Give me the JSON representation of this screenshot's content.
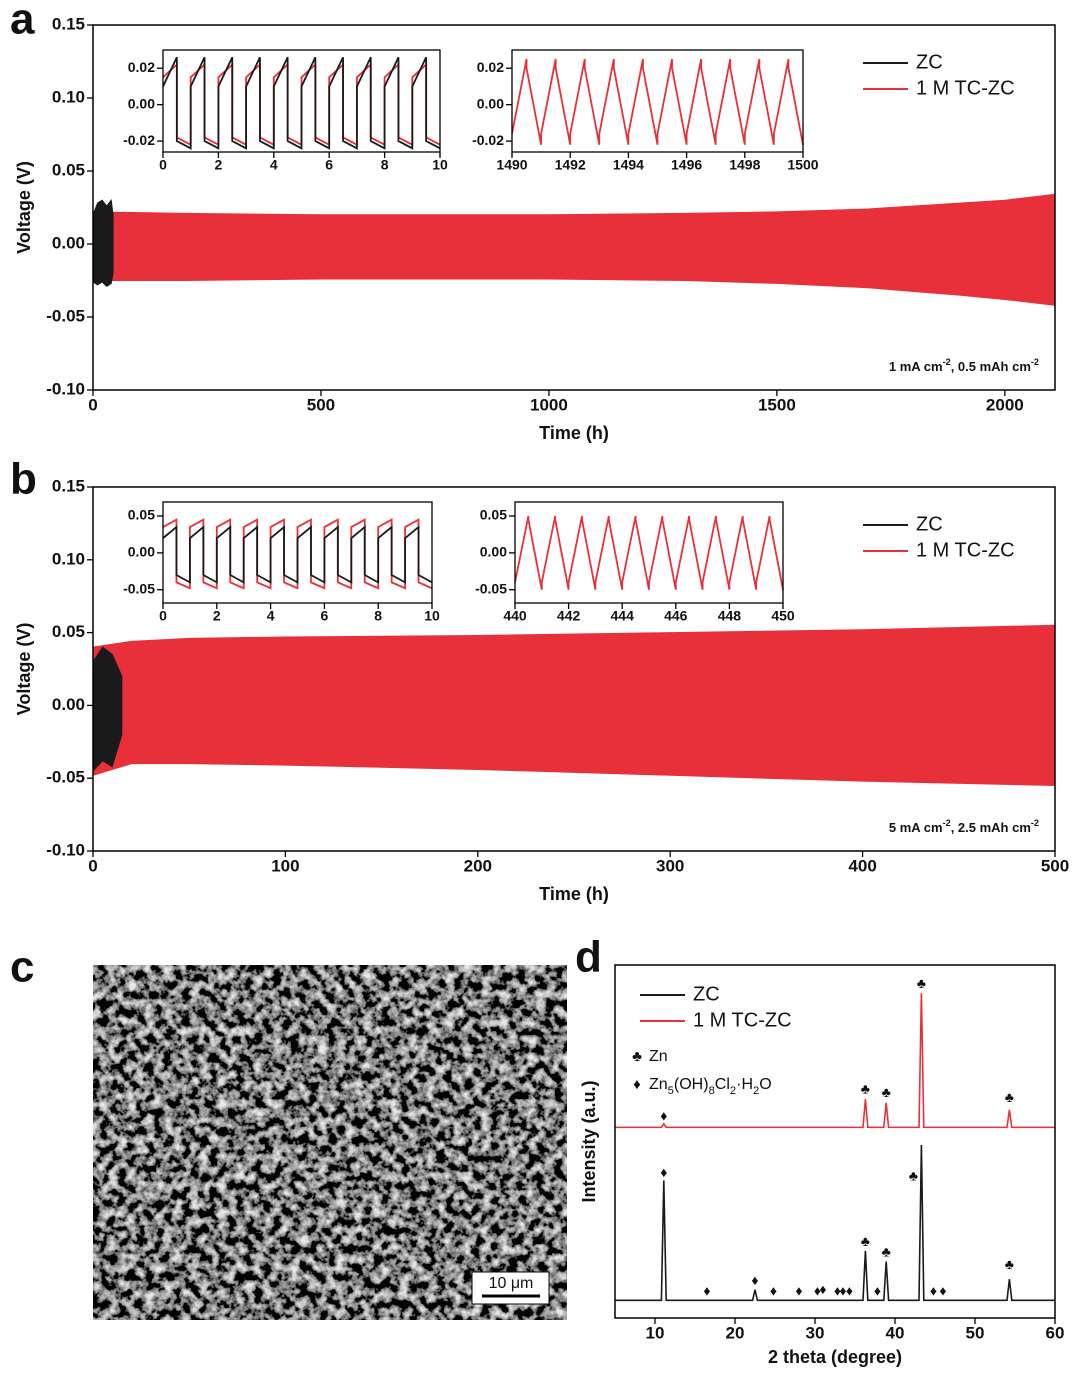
{
  "chart_data": [
    {
      "type": "band",
      "panel_label": "a",
      "xlabel": "Time (h)",
      "ylabel": "Voltage (V)",
      "xlim": [
        0,
        2110
      ],
      "ylim": [
        -0.1,
        0.15
      ],
      "xticks": [
        0,
        500,
        1000,
        1500,
        2000
      ],
      "yticks": [
        0.15,
        {
          "value": 0.1,
          "label": "0.10"
        },
        0.05,
        {
          "value": 0,
          "label": "0.00"
        },
        -0.05,
        {
          "value": -0.1,
          "label": "-0.10"
        }
      ],
      "legend": "upper right",
      "note": [
        {
          "text": "1 mA cm"
        },
        {
          "text": "-2",
          "sup": true
        },
        {
          "text": ", 0.5 mAh cm"
        },
        {
          "text": "-2",
          "sup": true
        }
      ],
      "series": [
        {
          "name": "ZC",
          "color": "#1a1a1a",
          "x": [
            0,
            10,
            20,
            30,
            40,
            44
          ],
          "upper": [
            0.02,
            0.028,
            0.03,
            0.026,
            0.03,
            0.02
          ],
          "lower": [
            -0.026,
            -0.028,
            -0.026,
            -0.029,
            -0.027,
            -0.02
          ]
        },
        {
          "name": "1 M TC-ZC",
          "color": "#e8303a",
          "x": [
            0,
            200,
            500,
            1000,
            1300,
            1500,
            1700,
            1900,
            2000,
            2110
          ],
          "upper": [
            0.022,
            0.021,
            0.02,
            0.02,
            0.021,
            0.022,
            0.024,
            0.028,
            0.03,
            0.034
          ],
          "lower": [
            -0.025,
            -0.025,
            -0.024,
            -0.024,
            -0.025,
            -0.027,
            -0.03,
            -0.035,
            -0.038,
            -0.042
          ]
        }
      ]
    },
    {
      "type": "line",
      "xlim": [
        0,
        10
      ],
      "ylim": [
        -0.026,
        0.03
      ],
      "xticks": [
        0,
        2,
        4,
        6,
        8,
        10
      ],
      "yticks": [
        0.02,
        {
          "value": 0,
          "label": "0.00"
        },
        -0.02
      ],
      "x": [
        0,
        0.5,
        0.5,
        1,
        1,
        1.5,
        1.5,
        2,
        2,
        2.5,
        2.5,
        3,
        3,
        3.5,
        3.5,
        4,
        4,
        4.5,
        4.5,
        5,
        5,
        5.5,
        5.5,
        6,
        6,
        6.5,
        6.5,
        7,
        7,
        7.5,
        7.5,
        8,
        8,
        8.5,
        8.5,
        9,
        9,
        9.5,
        9.5,
        10
      ],
      "series": [
        {
          "name": "ZC",
          "color": "#1a1a1a",
          "values": [
            0.01,
            0.026,
            -0.02,
            -0.024,
            0.01,
            0.026,
            -0.02,
            -0.024,
            0.01,
            0.026,
            -0.02,
            -0.024,
            0.01,
            0.026,
            -0.02,
            -0.024,
            0.01,
            0.026,
            -0.02,
            -0.024,
            0.01,
            0.026,
            -0.02,
            -0.024,
            0.01,
            0.026,
            -0.02,
            -0.024,
            0.01,
            0.026,
            -0.02,
            -0.024,
            0.01,
            0.026,
            -0.02,
            -0.024,
            0.01,
            0.026,
            -0.02,
            -0.024
          ]
        },
        {
          "name": "1 M TC-ZC",
          "color": "#e8303a",
          "values": [
            0.015,
            0.022,
            -0.018,
            -0.022,
            0.015,
            0.022,
            -0.018,
            -0.022,
            0.015,
            0.022,
            -0.018,
            -0.022,
            0.015,
            0.022,
            -0.018,
            -0.022,
            0.015,
            0.022,
            -0.018,
            -0.022,
            0.015,
            0.022,
            -0.018,
            -0.022,
            0.015,
            0.022,
            -0.018,
            -0.022,
            0.015,
            0.022,
            -0.018,
            -0.022,
            0.015,
            0.022,
            -0.018,
            -0.022,
            0.015,
            0.022,
            -0.018,
            -0.022
          ]
        }
      ]
    },
    {
      "type": "line",
      "xlim": [
        1490,
        1500
      ],
      "ylim": [
        -0.026,
        0.03
      ],
      "xticks": [
        1490,
        1492,
        1494,
        1496,
        1498,
        1500
      ],
      "yticks": [
        0.02,
        {
          "value": 0,
          "label": "0.00"
        },
        -0.02
      ],
      "x": [
        1490,
        1490.5,
        1490.5,
        1491,
        1491,
        1491.5,
        1491.5,
        1492,
        1492,
        1492.5,
        1492.5,
        1493,
        1493,
        1493.5,
        1493.5,
        1494,
        1494,
        1494.5,
        1494.5,
        1495,
        1495,
        1495.5,
        1495.5,
        1496,
        1496,
        1496.5,
        1496.5,
        1497,
        1497,
        1497.5,
        1497.5,
        1498,
        1498,
        1498.5,
        1498.5,
        1499,
        1499,
        1499.5,
        1499.5,
        1500
      ],
      "series": [
        {
          "name": "1 M TC-ZC",
          "color": "#e8303a",
          "values": [
            -0.016,
            0.025,
            0.02,
            -0.022,
            -0.016,
            0.025,
            0.02,
            -0.022,
            -0.016,
            0.025,
            0.02,
            -0.022,
            -0.016,
            0.025,
            0.02,
            -0.022,
            -0.016,
            0.025,
            0.02,
            -0.022,
            -0.016,
            0.025,
            0.02,
            -0.022,
            -0.016,
            0.025,
            0.02,
            -0.022,
            -0.016,
            0.025,
            0.02,
            -0.022,
            -0.016,
            0.025,
            0.02,
            -0.022,
            -0.016,
            0.025,
            0.02,
            -0.022
          ]
        }
      ]
    },
    {
      "type": "band",
      "panel_label": "b",
      "xlabel": "Time (h)",
      "ylabel": "Voltage (V)",
      "xlim": [
        0,
        500
      ],
      "ylim": [
        -0.1,
        0.15
      ],
      "xticks": [
        0,
        100,
        200,
        300,
        400,
        500
      ],
      "yticks": [
        0.15,
        {
          "value": 0.1,
          "label": "0.10"
        },
        0.05,
        {
          "value": 0,
          "label": "0.00"
        },
        -0.05,
        {
          "value": -0.1,
          "label": "-0.10"
        }
      ],
      "legend": "upper right",
      "note": [
        {
          "text": "5 mA cm"
        },
        {
          "text": "-2",
          "sup": true
        },
        {
          "text": ", 2.5 mAh cm"
        },
        {
          "text": "-2",
          "sup": true
        }
      ],
      "series": [
        {
          "name": "ZC",
          "color": "#1a1a1a",
          "x": [
            0,
            5,
            10,
            15
          ],
          "upper": [
            0.03,
            0.04,
            0.035,
            0.02
          ],
          "lower": [
            -0.045,
            -0.038,
            -0.042,
            -0.02
          ]
        },
        {
          "name": "1 M TC-ZC",
          "color": "#e8303a",
          "x": [
            0,
            20,
            50,
            100,
            200,
            300,
            400,
            500
          ],
          "upper": [
            0.04,
            0.044,
            0.046,
            0.047,
            0.048,
            0.05,
            0.052,
            0.055
          ],
          "lower": [
            -0.048,
            -0.04,
            -0.04,
            -0.041,
            -0.044,
            -0.048,
            -0.052,
            -0.055
          ]
        }
      ]
    },
    {
      "type": "line",
      "xlim": [
        0,
        10
      ],
      "ylim": [
        -0.068,
        0.069
      ],
      "xticks": [
        0,
        2,
        4,
        6,
        8,
        10
      ],
      "yticks": [
        0.05,
        {
          "value": 0,
          "label": "0.00"
        },
        -0.05
      ],
      "x": [
        0,
        0.5,
        0.5,
        1,
        1,
        1.5,
        1.5,
        2,
        2,
        2.5,
        2.5,
        3,
        3,
        3.5,
        3.5,
        4,
        4,
        4.5,
        4.5,
        5,
        5,
        5.5,
        5.5,
        6,
        6,
        6.5,
        6.5,
        7,
        7,
        7.5,
        7.5,
        8,
        8,
        8.5,
        8.5,
        9,
        9,
        9.5,
        9.5,
        10
      ],
      "series": [
        {
          "name": "ZC",
          "color": "#1a1a1a",
          "values": [
            0.02,
            0.035,
            -0.03,
            -0.04,
            0.02,
            0.035,
            -0.03,
            -0.04,
            0.02,
            0.035,
            -0.03,
            -0.04,
            0.02,
            0.035,
            -0.03,
            -0.04,
            0.02,
            0.035,
            -0.03,
            -0.04,
            0.02,
            0.035,
            -0.03,
            -0.04,
            0.02,
            0.035,
            -0.03,
            -0.04,
            0.02,
            0.035,
            -0.03,
            -0.04,
            0.02,
            0.035,
            -0.03,
            -0.04,
            0.02,
            0.035,
            -0.03,
            -0.04
          ]
        },
        {
          "name": "1 M TC-ZC",
          "color": "#e8303a",
          "values": [
            0.035,
            0.045,
            -0.04,
            -0.048,
            0.035,
            0.045,
            -0.04,
            -0.048,
            0.035,
            0.045,
            -0.04,
            -0.048,
            0.035,
            0.045,
            -0.04,
            -0.048,
            0.035,
            0.045,
            -0.04,
            -0.048,
            0.035,
            0.045,
            -0.04,
            -0.048,
            0.035,
            0.045,
            -0.04,
            -0.048,
            0.035,
            0.045,
            -0.04,
            -0.048,
            0.035,
            0.045,
            -0.04,
            -0.048,
            0.035,
            0.045,
            -0.04,
            -0.048
          ]
        }
      ]
    },
    {
      "type": "line",
      "xlim": [
        440,
        450
      ],
      "ylim": [
        -0.068,
        0.069
      ],
      "xticks": [
        440,
        442,
        444,
        446,
        448,
        450
      ],
      "yticks": [
        0.05,
        {
          "value": 0,
          "label": "0.00"
        },
        -0.05
      ],
      "x": [
        440,
        440.5,
        440.5,
        441,
        441,
        441.5,
        441.5,
        442,
        442,
        442.5,
        442.5,
        443,
        443,
        443.5,
        443.5,
        444,
        444,
        444.5,
        444.5,
        445,
        445,
        445.5,
        445.5,
        446,
        446,
        446.5,
        446.5,
        447,
        447,
        447.5,
        447.5,
        448,
        448,
        448.5,
        448.5,
        449,
        449,
        449.5,
        449.5,
        450
      ],
      "series": [
        {
          "name": "1 M TC-ZC",
          "color": "#e8303a",
          "values": [
            -0.04,
            0.05,
            0.045,
            -0.05,
            -0.04,
            0.05,
            0.045,
            -0.05,
            -0.04,
            0.05,
            0.045,
            -0.05,
            -0.04,
            0.05,
            0.045,
            -0.05,
            -0.04,
            0.05,
            0.045,
            -0.05,
            -0.04,
            0.05,
            0.045,
            -0.05,
            -0.04,
            0.05,
            0.045,
            -0.05,
            -0.04,
            0.05,
            0.045,
            -0.05,
            -0.04,
            0.05,
            0.045,
            -0.05,
            -0.04,
            0.05,
            0.045,
            -0.05
          ]
        }
      ]
    },
    {
      "type": "line",
      "panel_label": "d",
      "xlabel": "2 theta (degree)",
      "ylabel": "Intensity (a.u.)",
      "xlim": [
        5,
        60
      ],
      "ylim": [
        0,
        100
      ],
      "xticks": [
        10,
        20,
        30,
        40,
        50,
        60
      ],
      "legend": "upper left",
      "series": [
        {
          "name": "ZC",
          "color": "#1a1a1a",
          "x": [
            5,
            10.8,
            11.1,
            11.4,
            22.2,
            22.5,
            22.8,
            36.0,
            36.3,
            36.6,
            38.6,
            38.9,
            39.2,
            43.0,
            43.3,
            43.6,
            54.0,
            54.3,
            54.6,
            60
          ],
          "values": [
            5,
            5,
            39,
            5,
            5,
            8,
            5,
            5,
            19,
            5,
            5,
            16,
            5,
            5,
            49,
            5,
            5,
            11,
            5,
            5
          ]
        },
        {
          "name": "1 M TC-ZC",
          "color": "#e8303a",
          "x": [
            5,
            10.8,
            11.1,
            11.4,
            36.0,
            36.3,
            36.6,
            38.6,
            38.9,
            39.2,
            43.0,
            43.3,
            43.6,
            54.0,
            54.3,
            54.6,
            60
          ],
          "values": [
            54,
            54,
            55,
            54,
            54,
            62,
            54,
            54,
            61,
            54,
            54,
            92,
            54,
            54,
            59,
            54,
            54
          ]
        }
      ],
      "marker_legend": [
        {
          "symbol": "♣",
          "parts": [
            {
              "text": "Zn"
            }
          ]
        },
        {
          "symbol": "♦",
          "parts": [
            {
              "text": "Zn"
            },
            {
              "text": "5",
              "sub": true
            },
            {
              "text": "(OH)"
            },
            {
              "text": "8",
              "sub": true
            },
            {
              "text": "Cl"
            },
            {
              "text": "2",
              "sub": true
            },
            {
              "text": "·H"
            },
            {
              "text": "2",
              "sub": true
            },
            {
              "text": "O"
            }
          ]
        }
      ],
      "markers": [
        {
          "symbol": "♦",
          "x": 11.1,
          "y": 57
        },
        {
          "symbol": "♣",
          "x": 36.3,
          "y": 64.6
        },
        {
          "symbol": "♣",
          "x": 38.9,
          "y": 63.7
        },
        {
          "symbol": "♣",
          "x": 43.3,
          "y": 94.5
        },
        {
          "symbol": "♣",
          "x": 54.3,
          "y": 62.3
        },
        {
          "symbol": "♦",
          "x": 11.1,
          "y": 41
        },
        {
          "symbol": "♦",
          "x": 16.5,
          "y": 7.4
        },
        {
          "symbol": "♦",
          "x": 22.5,
          "y": 10.4
        },
        {
          "symbol": "♦",
          "x": 24.8,
          "y": 7.4
        },
        {
          "symbol": "♦",
          "x": 28,
          "y": 7.4
        },
        {
          "symbol": "♦",
          "x": 30.3,
          "y": 7.4
        },
        {
          "symbol": "♦",
          "x": 31,
          "y": 7.9
        },
        {
          "symbol": "♦",
          "x": 32.8,
          "y": 7.4
        },
        {
          "symbol": "♦",
          "x": 33.5,
          "y": 7.4
        },
        {
          "symbol": "♦",
          "x": 34.3,
          "y": 7.4
        },
        {
          "symbol": "♣",
          "x": 36.3,
          "y": 21.5
        },
        {
          "symbol": "♦",
          "x": 37.8,
          "y": 7.4
        },
        {
          "symbol": "♣",
          "x": 38.9,
          "y": 18.5
        },
        {
          "symbol": "♣",
          "x": 42.3,
          "y": 40
        },
        {
          "symbol": "♦",
          "x": 44.8,
          "y": 7.4
        },
        {
          "symbol": "♦",
          "x": 46,
          "y": 7.4
        },
        {
          "symbol": "♣",
          "x": 54.3,
          "y": 15
        }
      ]
    }
  ],
  "image": {
    "panel_label": "c",
    "scale_bar": "10 μm"
  }
}
